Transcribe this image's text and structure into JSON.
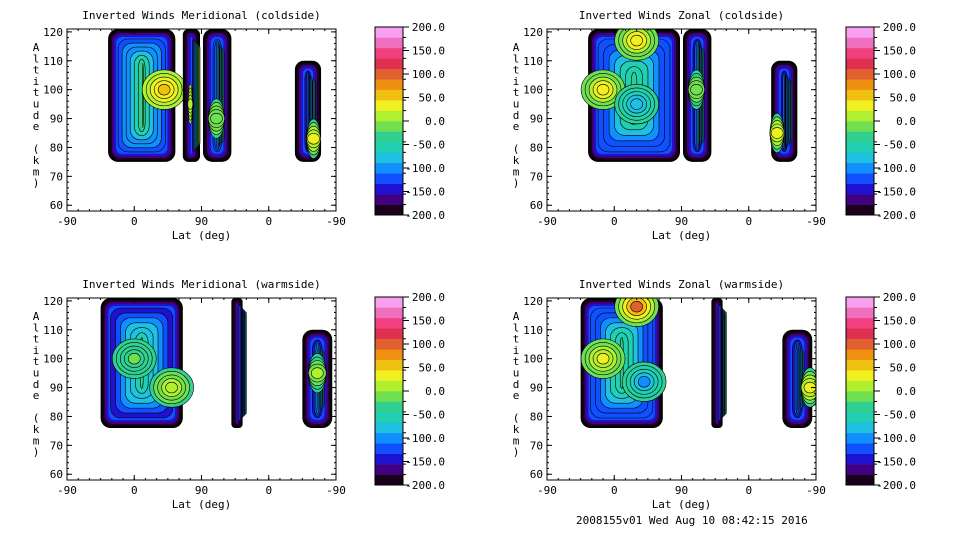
{
  "colors": {
    "colorbar": [
      "#1a001a",
      "#400080",
      "#2010d0",
      "#1050ff",
      "#1090ff",
      "#20c0e0",
      "#20d0b0",
      "#30d090",
      "#70e050",
      "#b0f030",
      "#f0f020",
      "#f0c010",
      "#f09010",
      "#e06030",
      "#e03050",
      "#f04080",
      "#f070c0",
      "#f8a0f0"
    ]
  },
  "chart_data": [
    {
      "type": "heatmap",
      "title": "Inverted Winds Meridional (coldside)",
      "xlabel": "Lat (deg)",
      "ylabel": "Altitude (km)",
      "x_tick_labels": [
        "-90",
        "0",
        "90",
        "0",
        "-90"
      ],
      "y_ticks": [
        60,
        70,
        80,
        90,
        100,
        110,
        120
      ],
      "ylim": [
        58,
        121
      ],
      "colorbar_ticks": [
        "200.0",
        "150.0",
        "100.0",
        "50.0",
        "0.0",
        "-50.0",
        "-100.0",
        "-150.0",
        "-200.0"
      ],
      "colorbar_range": [
        -200,
        200
      ],
      "blobs": [
        {
          "seg": [
            -35,
            55
          ],
          "alt": [
            75,
            121
          ],
          "base": -10,
          "hot": [
            [
              40,
              100,
              45
            ]
          ]
        },
        {
          "seg": [
            65,
            88
          ],
          "alt": [
            75,
            121
          ],
          "base": 0,
          "hot": [
            [
              75,
              95,
              10
            ]
          ]
        },
        {
          "seg": [
            92,
            130
          ],
          "alt": [
            75,
            121
          ],
          "base": -30,
          "hot": [
            [
              110,
              90,
              -10
            ]
          ]
        },
        {
          "seg": [
            215,
            250
          ],
          "alt": [
            75,
            110
          ],
          "base": -60,
          "hot": [
            [
              240,
              83,
              40
            ]
          ]
        }
      ]
    },
    {
      "type": "heatmap",
      "title": "Inverted Winds Zonal (coldside)",
      "xlabel": "Lat (deg)",
      "ylabel": "Altitude (km)",
      "x_tick_labels": [
        "-90",
        "0",
        "90",
        "0",
        "-90"
      ],
      "y_ticks": [
        60,
        70,
        80,
        90,
        100,
        110,
        120
      ],
      "ylim": [
        58,
        121
      ],
      "colorbar_ticks": [
        "200.0",
        "150.0",
        "100.0",
        "50.0",
        "0.0",
        "-50.0",
        "-100.0",
        "-150.0",
        "-200.0"
      ],
      "colorbar_range": [
        -200,
        200
      ],
      "blobs": [
        {
          "seg": [
            -35,
            88
          ],
          "alt": [
            75,
            121
          ],
          "base": -30,
          "hot": [
            [
              -15,
              100,
              40
            ],
            [
              30,
              95,
              -80
            ],
            [
              30,
              117,
              40
            ]
          ]
        },
        {
          "seg": [
            92,
            130
          ],
          "alt": [
            75,
            121
          ],
          "base": -40,
          "hot": [
            [
              110,
              100,
              -10
            ]
          ]
        },
        {
          "seg": [
            210,
            245
          ],
          "alt": [
            75,
            110
          ],
          "base": -60,
          "hot": [
            [
              218,
              85,
              40
            ]
          ]
        }
      ]
    },
    {
      "type": "heatmap",
      "title": "Inverted Winds Meridional (warmside)",
      "xlabel": "Lat (deg)",
      "ylabel": "Altitude (km)",
      "x_tick_labels": [
        "-90",
        "0",
        "90",
        "0",
        "-90"
      ],
      "y_ticks": [
        60,
        70,
        80,
        90,
        100,
        110,
        120
      ],
      "ylim": [
        58,
        121
      ],
      "colorbar_ticks": [
        "200.0",
        "150.0",
        "100.0",
        "50.0",
        "0.0",
        "-50.0",
        "-100.0",
        "-150.0",
        "-200.0"
      ],
      "colorbar_range": [
        -200,
        200
      ],
      "blobs": [
        {
          "seg": [
            -45,
            65
          ],
          "alt": [
            76,
            121
          ],
          "base": -40,
          "hot": [
            [
              50,
              90,
              10
            ],
            [
              0,
              100,
              -20
            ]
          ]
        },
        {
          "seg": [
            130,
            145
          ],
          "alt": [
            76,
            121
          ],
          "base": -80,
          "hot": []
        },
        {
          "seg": [
            225,
            265
          ],
          "alt": [
            76,
            110
          ],
          "base": -40,
          "hot": [
            [
              245,
              95,
              0
            ]
          ]
        }
      ]
    },
    {
      "type": "heatmap",
      "title": "Inverted Winds Zonal (warmside)",
      "xlabel": "Lat (deg)",
      "ylabel": "Altitude (km)",
      "x_tick_labels": [
        "-90",
        "0",
        "90",
        "0",
        "-90"
      ],
      "y_ticks": [
        60,
        70,
        80,
        90,
        100,
        110,
        120
      ],
      "ylim": [
        58,
        121
      ],
      "colorbar_ticks": [
        "200.0",
        "150.0",
        "100.0",
        "50.0",
        "0.0",
        "-50.0",
        "-100.0",
        "-150.0",
        "-200.0"
      ],
      "colorbar_range": [
        -200,
        200
      ],
      "blobs": [
        {
          "seg": [
            -45,
            65
          ],
          "alt": [
            76,
            121
          ],
          "base": -30,
          "hot": [
            [
              -15,
              100,
              30
            ],
            [
              40,
              92,
              -90
            ],
            [
              30,
              118,
              90
            ]
          ]
        },
        {
          "seg": [
            130,
            145
          ],
          "alt": [
            76,
            121
          ],
          "base": -40,
          "hot": []
        },
        {
          "seg": [
            225,
            265
          ],
          "alt": [
            76,
            110
          ],
          "base": -60,
          "hot": [
            [
              262,
              90,
              40
            ]
          ]
        }
      ]
    }
  ],
  "footer": "2008155v01 Wed Aug 10 08:42:15 2016"
}
